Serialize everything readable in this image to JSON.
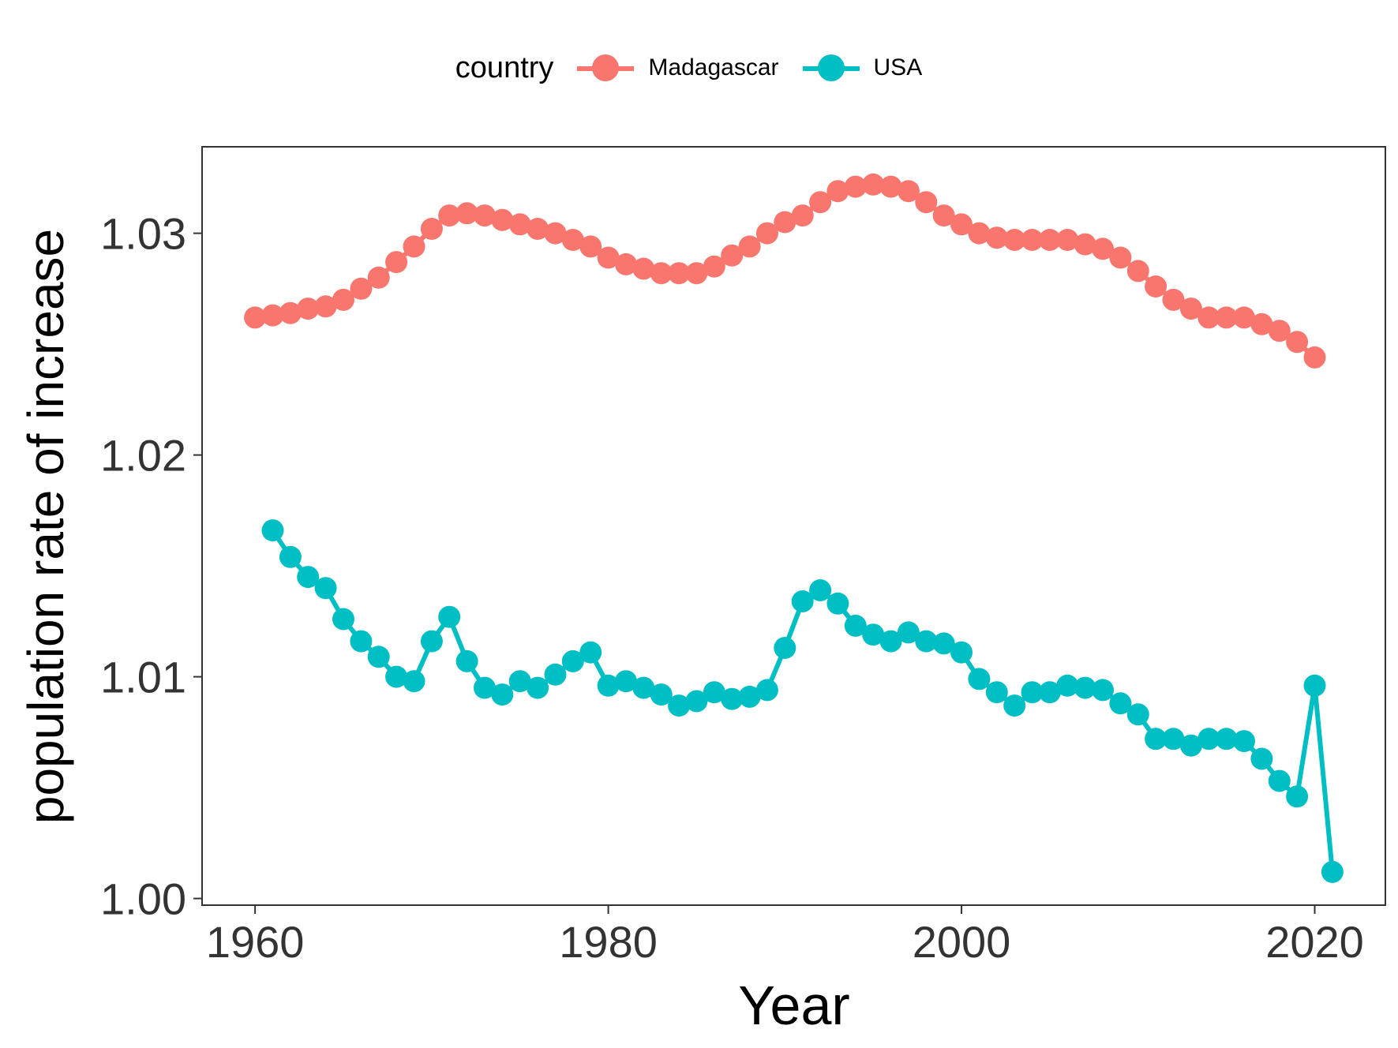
{
  "chart_data": {
    "type": "line",
    "title": "",
    "xlabel": "Year",
    "ylabel": "population rate of increase",
    "xlim": [
      1957,
      2024
    ],
    "ylim": [
      0.9997,
      1.0339
    ],
    "x_ticks": [
      1960,
      1980,
      2000,
      2020
    ],
    "x_tick_labels": [
      "1960",
      "1980",
      "2000",
      "2020"
    ],
    "y_ticks": [
      1.0,
      1.01,
      1.02,
      1.03
    ],
    "y_tick_labels": [
      "1.00",
      "1.01",
      "1.02",
      "1.03"
    ],
    "grid": false,
    "legend": {
      "title": "country",
      "position": "top"
    },
    "series": [
      {
        "name": "Madagascar",
        "color": "#F8766D",
        "x": [
          1960,
          1961,
          1962,
          1963,
          1964,
          1965,
          1966,
          1967,
          1968,
          1969,
          1970,
          1971,
          1972,
          1973,
          1974,
          1975,
          1976,
          1977,
          1978,
          1979,
          1980,
          1981,
          1982,
          1983,
          1984,
          1985,
          1986,
          1987,
          1988,
          1989,
          1990,
          1991,
          1992,
          1993,
          1994,
          1995,
          1996,
          1997,
          1998,
          1999,
          2000,
          2001,
          2002,
          2003,
          2004,
          2005,
          2006,
          2007,
          2008,
          2009,
          2010,
          2011,
          2012,
          2013,
          2014,
          2015,
          2016,
          2017,
          2018,
          2019,
          2020
        ],
        "y": [
          1.0262,
          1.0263,
          1.0264,
          1.0266,
          1.0267,
          1.027,
          1.0275,
          1.028,
          1.0287,
          1.0294,
          1.0302,
          1.0308,
          1.0309,
          1.0308,
          1.0306,
          1.0304,
          1.0302,
          1.03,
          1.0297,
          1.0294,
          1.0289,
          1.0286,
          1.0284,
          1.0282,
          1.0282,
          1.0282,
          1.0285,
          1.029,
          1.0294,
          1.03,
          1.0305,
          1.0308,
          1.0314,
          1.0319,
          1.0321,
          1.0322,
          1.0321,
          1.0319,
          1.0314,
          1.0308,
          1.0304,
          1.03,
          1.0298,
          1.0297,
          1.0297,
          1.0297,
          1.0297,
          1.0295,
          1.0293,
          1.0289,
          1.0283,
          1.0276,
          1.027,
          1.0266,
          1.0262,
          1.0262,
          1.0262,
          1.0259,
          1.0256,
          1.0251,
          1.0244
        ]
      },
      {
        "name": "USA",
        "color": "#00BFC4",
        "x": [
          1961,
          1962,
          1963,
          1964,
          1965,
          1966,
          1967,
          1968,
          1969,
          1970,
          1971,
          1972,
          1973,
          1974,
          1975,
          1976,
          1977,
          1978,
          1979,
          1980,
          1981,
          1982,
          1983,
          1984,
          1985,
          1986,
          1987,
          1988,
          1989,
          1990,
          1991,
          1992,
          1993,
          1994,
          1995,
          1996,
          1997,
          1998,
          1999,
          2000,
          2001,
          2002,
          2003,
          2004,
          2005,
          2006,
          2007,
          2008,
          2009,
          2010,
          2011,
          2012,
          2013,
          2014,
          2015,
          2016,
          2017,
          2018,
          2019,
          2020,
          2021
        ],
        "y": [
          1.0166,
          1.0154,
          1.0145,
          1.014,
          1.0126,
          1.0116,
          1.0109,
          1.01,
          1.0098,
          1.0116,
          1.0127,
          1.0107,
          1.0095,
          1.0092,
          1.0098,
          1.0095,
          1.0101,
          1.0107,
          1.0111,
          1.0096,
          1.0098,
          1.0095,
          1.0092,
          1.0087,
          1.0089,
          1.0093,
          1.009,
          1.0091,
          1.0094,
          1.0113,
          1.0134,
          1.0139,
          1.0133,
          1.0123,
          1.0119,
          1.0116,
          1.012,
          1.0116,
          1.0115,
          1.0111,
          1.0099,
          1.0093,
          1.0087,
          1.0093,
          1.0093,
          1.0096,
          1.0095,
          1.0094,
          1.0088,
          1.0083,
          1.0072,
          1.0072,
          1.0069,
          1.0072,
          1.0072,
          1.0071,
          1.0063,
          1.0053,
          1.0046,
          1.0096,
          1.0012
        ]
      }
    ]
  }
}
